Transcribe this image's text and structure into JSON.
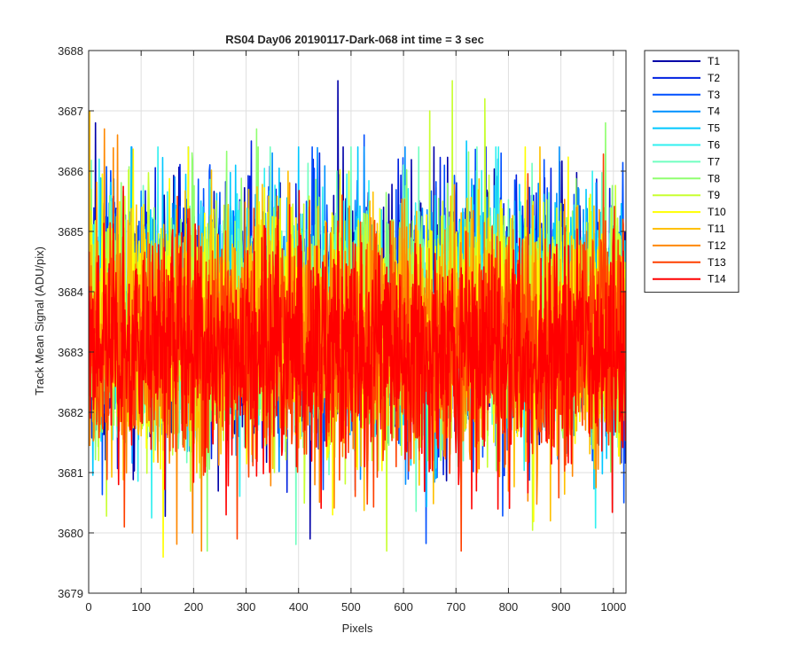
{
  "chart_data": {
    "type": "line",
    "title": "RS04 Day06 20190117-Dark-068 int time = 3 sec",
    "xlabel": "Pixels",
    "ylabel": "Track Mean Signal (ADU/pix)",
    "xlim": [
      0,
      1024
    ],
    "ylim": [
      3679,
      3688
    ],
    "xticks": [
      "0",
      "100",
      "200",
      "300",
      "400",
      "500",
      "600",
      "700",
      "800",
      "900",
      "1000"
    ],
    "yticks": [
      "3679",
      "3680",
      "3681",
      "3682",
      "3683",
      "3684",
      "3685",
      "3686",
      "3687",
      "3688"
    ],
    "grid": true,
    "legend_position": "outside-top-right",
    "n_points": 1024,
    "mean_level": 3683.3,
    "series": [
      {
        "name": "T1",
        "color": "#0000a8",
        "mean": 3683.6,
        "std": 0.95,
        "spikes": [
          [
            475,
            3687.5
          ],
          [
            422,
            3679.9
          ],
          [
            13,
            3686.8
          ]
        ]
      },
      {
        "name": "T2",
        "color": "#0020e0",
        "mean": 3683.6,
        "std": 0.95,
        "spikes": [
          [
            310,
            3686.5
          ],
          [
            440,
            3686.3
          ],
          [
            590,
            3686.2
          ]
        ]
      },
      {
        "name": "T3",
        "color": "#0050ff",
        "mean": 3683.6,
        "std": 0.95,
        "spikes": [
          [
            525,
            3686.6
          ],
          [
            230,
            3686.0
          ],
          [
            1020,
            3680.5
          ]
        ]
      },
      {
        "name": "T4",
        "color": "#0090ff",
        "mean": 3683.6,
        "std": 0.95,
        "spikes": [
          [
            350,
            3686.3
          ],
          [
            780,
            3686.2
          ]
        ]
      },
      {
        "name": "T5",
        "color": "#00c8ff",
        "mean": 3683.6,
        "std": 0.95,
        "spikes": [
          [
            720,
            3686.5
          ],
          [
            650,
            3686.0
          ]
        ]
      },
      {
        "name": "T6",
        "color": "#30f0f0",
        "mean": 3683.6,
        "std": 0.95,
        "spikes": [
          [
            20,
            3686.2
          ],
          [
            960,
            3686.0
          ]
        ]
      },
      {
        "name": "T7",
        "color": "#70ffc0",
        "mean": 3683.5,
        "std": 0.95,
        "spikes": [
          [
            500,
            3686.4
          ],
          [
            600,
            3686.1
          ]
        ]
      },
      {
        "name": "T8",
        "color": "#90ff70",
        "mean": 3683.5,
        "std": 0.95,
        "spikes": [
          [
            226,
            3679.7
          ],
          [
            985,
            3686.8
          ],
          [
            320,
            3686.7
          ]
        ]
      },
      {
        "name": "T9",
        "color": "#c8ff30",
        "mean": 3683.4,
        "std": 0.95,
        "spikes": [
          [
            693,
            3687.5
          ],
          [
            650,
            3687.0
          ],
          [
            755,
            3687.2
          ]
        ]
      },
      {
        "name": "T10",
        "color": "#ffff00",
        "mean": 3683.4,
        "std": 0.95,
        "spikes": [
          [
            142,
            3679.6
          ],
          [
            465,
            3680.3
          ],
          [
            190,
            3686.4
          ]
        ]
      },
      {
        "name": "T11",
        "color": "#ffc000",
        "mean": 3683.3,
        "std": 0.95,
        "spikes": [
          [
            2,
            3687.0
          ],
          [
            880,
            3680.2
          ],
          [
            380,
            3686.0
          ]
        ]
      },
      {
        "name": "T12",
        "color": "#ff8800",
        "mean": 3683.2,
        "std": 0.95,
        "spikes": [
          [
            30,
            3686.7
          ],
          [
            55,
            3686.6
          ]
        ]
      },
      {
        "name": "T13",
        "color": "#ff4000",
        "mean": 3683.1,
        "std": 0.95,
        "spikes": [
          [
            68,
            3680.1
          ],
          [
            283,
            3679.9
          ],
          [
            710,
            3679.7
          ]
        ]
      },
      {
        "name": "T14",
        "color": "#ff0000",
        "mean": 3683.0,
        "std": 0.9,
        "spikes": [
          [
            262,
            3680.3
          ],
          [
            730,
            3680.4
          ]
        ]
      }
    ]
  }
}
